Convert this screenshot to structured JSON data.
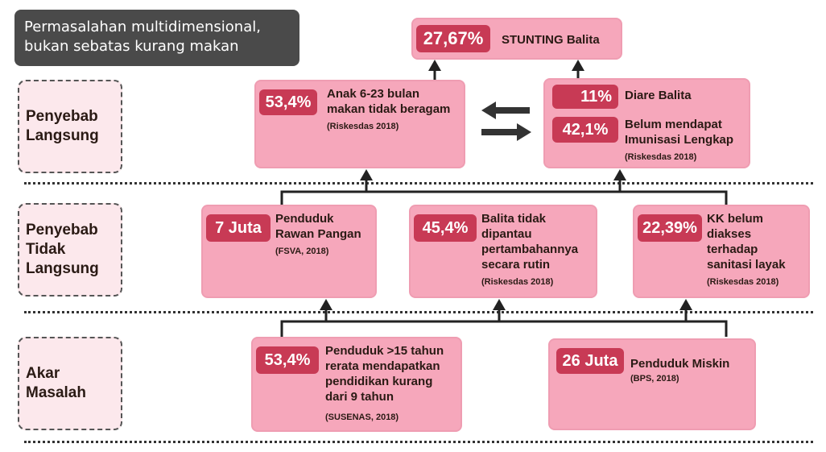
{
  "title": {
    "line1": "Permasalahan multidimensional,",
    "line2": "bukan sebatas kurang makan"
  },
  "levels": {
    "direct": {
      "line1": "Penyebab",
      "line2": "Langsung"
    },
    "indirect": {
      "line1": "Penyebab",
      "line2": "Tidak",
      "line3": "Langsung"
    },
    "root": {
      "line1": "Akar",
      "line2": "Masalah"
    }
  },
  "top": {
    "value": "27,67%",
    "label": "STUNTING Balita"
  },
  "direct": {
    "feeding": {
      "value": "53,4%",
      "line1": "Anak 6-23 bulan",
      "line2": "makan tidak beragam",
      "source": "(Riskesdas 2018)"
    },
    "health": {
      "diarrhea_value": "11%",
      "diarrhea_label": "Diare Balita",
      "immun_value": "42,1%",
      "immun_line1": "Belum mendapat",
      "immun_line2": "Imunisasi Lengkap",
      "source": "(Riskesdas 2018)"
    }
  },
  "indirect": {
    "food": {
      "value": "7 Juta",
      "line1": "Penduduk",
      "line2": "Rawan Pangan",
      "source": "(FSVA, 2018)"
    },
    "growth": {
      "value": "45,4%",
      "line1": "Balita tidak",
      "line2": "dipantau",
      "line3": "pertambahannya",
      "line4": "secara rutin",
      "source": "(Riskesdas 2018)"
    },
    "sanitation": {
      "value": "22,39%",
      "line1": "KK belum",
      "line2": "diakses",
      "line3": "terhadap",
      "line4": "sanitasi layak",
      "source": "(Riskesdas 2018)"
    }
  },
  "root": {
    "education": {
      "value": "53,4%",
      "line1": "Penduduk >15 tahun",
      "line2": "rerata mendapatkan",
      "line3": "pendidikan kurang",
      "line4": "dari 9 tahun",
      "source": "(SUSENAS, 2018)"
    },
    "poverty": {
      "value": "26 Juta",
      "label": "Penduduk Miskin",
      "source": "(BPS, 2018)"
    }
  }
}
